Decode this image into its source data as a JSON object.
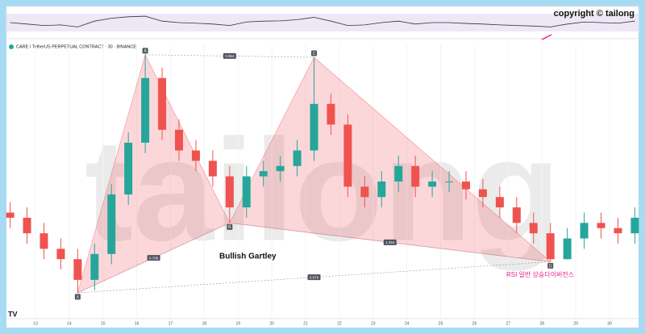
{
  "chart_data": {
    "type": "candlestick",
    "title": "CARE / TetherUS PERPETUAL CONTRACT · 30 · BINANCE",
    "copyright": "copyright © tailong",
    "watermark": "tailong",
    "annotation": "RSI 일반 상승다이버전스",
    "x": [
      12.25,
      12.75,
      13.25,
      13.75,
      14.25,
      14.75,
      15.25,
      15.75,
      16.25,
      16.75,
      17.25,
      17.75,
      18.25,
      18.75,
      19.25,
      19.75,
      20.25,
      20.75,
      21.25,
      21.75,
      22.25,
      22.75,
      23.25,
      23.75,
      24.25,
      24.75,
      25.25,
      25.75,
      26.25,
      26.75,
      27.25,
      27.75,
      28.25,
      28.75,
      29.25,
      29.75,
      30.25,
      30.75
    ],
    "open": [
      38,
      36,
      30,
      24,
      20,
      12,
      22,
      45,
      65,
      90,
      70,
      62,
      58,
      52,
      40,
      52,
      54,
      56,
      62,
      80,
      72,
      48,
      44,
      50,
      56,
      48,
      50,
      50,
      47,
      44,
      40,
      34,
      30,
      20,
      28,
      34,
      32,
      30
    ],
    "high": [
      42,
      40,
      34,
      28,
      24,
      26,
      49,
      69,
      99,
      94,
      74,
      66,
      62,
      56,
      56,
      58,
      60,
      66,
      98,
      84,
      76,
      52,
      54,
      60,
      60,
      54,
      54,
      54,
      51,
      48,
      44,
      38,
      34,
      32,
      38,
      38,
      36,
      40
    ],
    "low": [
      32,
      26,
      20,
      16,
      7,
      8,
      18,
      41,
      61,
      66,
      58,
      54,
      48,
      34,
      36,
      48,
      50,
      52,
      58,
      68,
      44,
      40,
      40,
      46,
      44,
      44,
      46,
      43,
      40,
      36,
      30,
      26,
      19,
      20,
      24,
      28,
      26,
      26
    ],
    "close": [
      36,
      30,
      24,
      20,
      12,
      22,
      45,
      65,
      90,
      70,
      62,
      58,
      52,
      40,
      52,
      54,
      56,
      62,
      80,
      72,
      48,
      44,
      50,
      56,
      48,
      50,
      50,
      47,
      44,
      40,
      34,
      30,
      20,
      28,
      34,
      32,
      30,
      36
    ],
    "colors": {
      "up": "#26a69a",
      "down": "#ef5350"
    },
    "xlim": [
      12.14,
      30.86
    ],
    "xticks": [
      13,
      14,
      15,
      16,
      17,
      18,
      19,
      20,
      21,
      22,
      23,
      24,
      25,
      26,
      27,
      28,
      29,
      30
    ],
    "ylim": [
      -3,
      103
    ],
    "rsi": {
      "ylim": [
        0,
        100
      ],
      "color": "#333333",
      "values": [
        50,
        45,
        40,
        42,
        35,
        55,
        65,
        70,
        72,
        55,
        50,
        48,
        45,
        40,
        52,
        55,
        56,
        60,
        68,
        55,
        40,
        42,
        50,
        55,
        45,
        50,
        50,
        47,
        45,
        42,
        40,
        38,
        35,
        45,
        52,
        50,
        48,
        55
      ]
    },
    "pattern": {
      "name": "Bullish Gartley",
      "color": "#f23645",
      "points": [
        {
          "label": "X",
          "x": 14.25,
          "y": 7
        },
        {
          "label": "A",
          "x": 16.25,
          "y": 99
        },
        {
          "label": "B",
          "x": 18.75,
          "y": 34
        },
        {
          "label": "C",
          "x": 21.25,
          "y": 98
        },
        {
          "label": "D",
          "x": 28.25,
          "y": 19
        }
      ],
      "ratios": [
        {
          "value": 0.964,
          "from": "A",
          "to": "C"
        },
        {
          "value": 0.786,
          "from": "X",
          "to": "B"
        },
        {
          "value": 1.254,
          "from": "B",
          "to": "D"
        },
        {
          "value": 0.879,
          "from": "X",
          "to": "D"
        }
      ]
    }
  }
}
